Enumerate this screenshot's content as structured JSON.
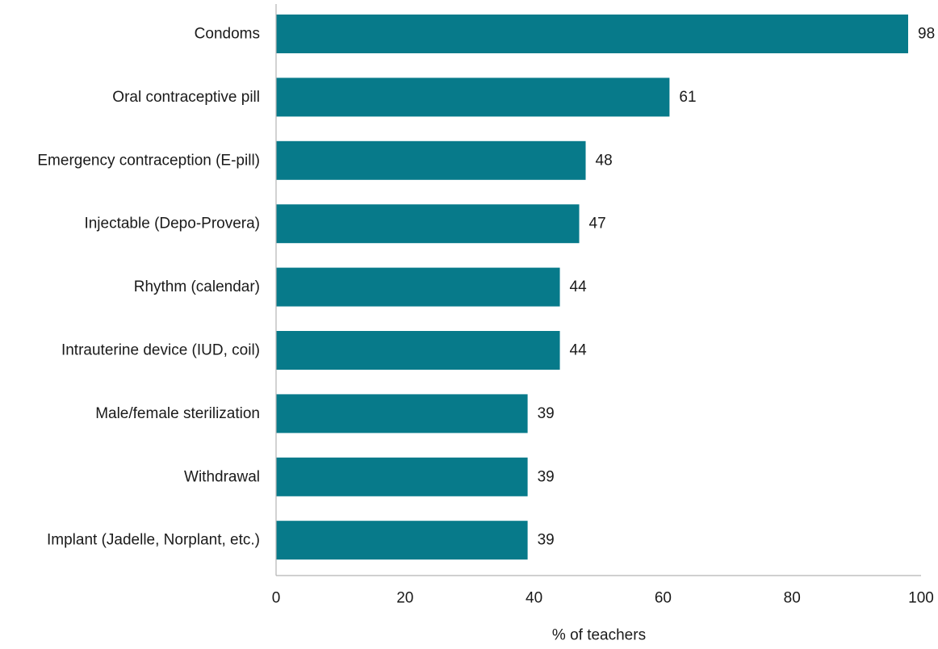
{
  "chart_data": {
    "type": "bar",
    "orientation": "horizontal",
    "categories": [
      "Condoms",
      "Oral contraceptive pill",
      "Emergency contraception (E-pill)",
      "Injectable (Depo-Provera)",
      "Rhythm (calendar)",
      "Intrauterine device (IUD, coil)",
      "Male/female sterilization",
      "Withdrawal",
      "Implant (Jadelle, Norplant, etc.)"
    ],
    "values": [
      98,
      61,
      48,
      47,
      44,
      44,
      39,
      39,
      39
    ],
    "title": "",
    "xlabel": "% of teachers",
    "ylabel": "",
    "xlim": [
      0,
      100
    ],
    "xticks": [
      0,
      20,
      40,
      60,
      80,
      100
    ],
    "data_labels": true,
    "grid": false,
    "bar_color": "#077a8a",
    "axis_color": "#b3b3b3"
  }
}
